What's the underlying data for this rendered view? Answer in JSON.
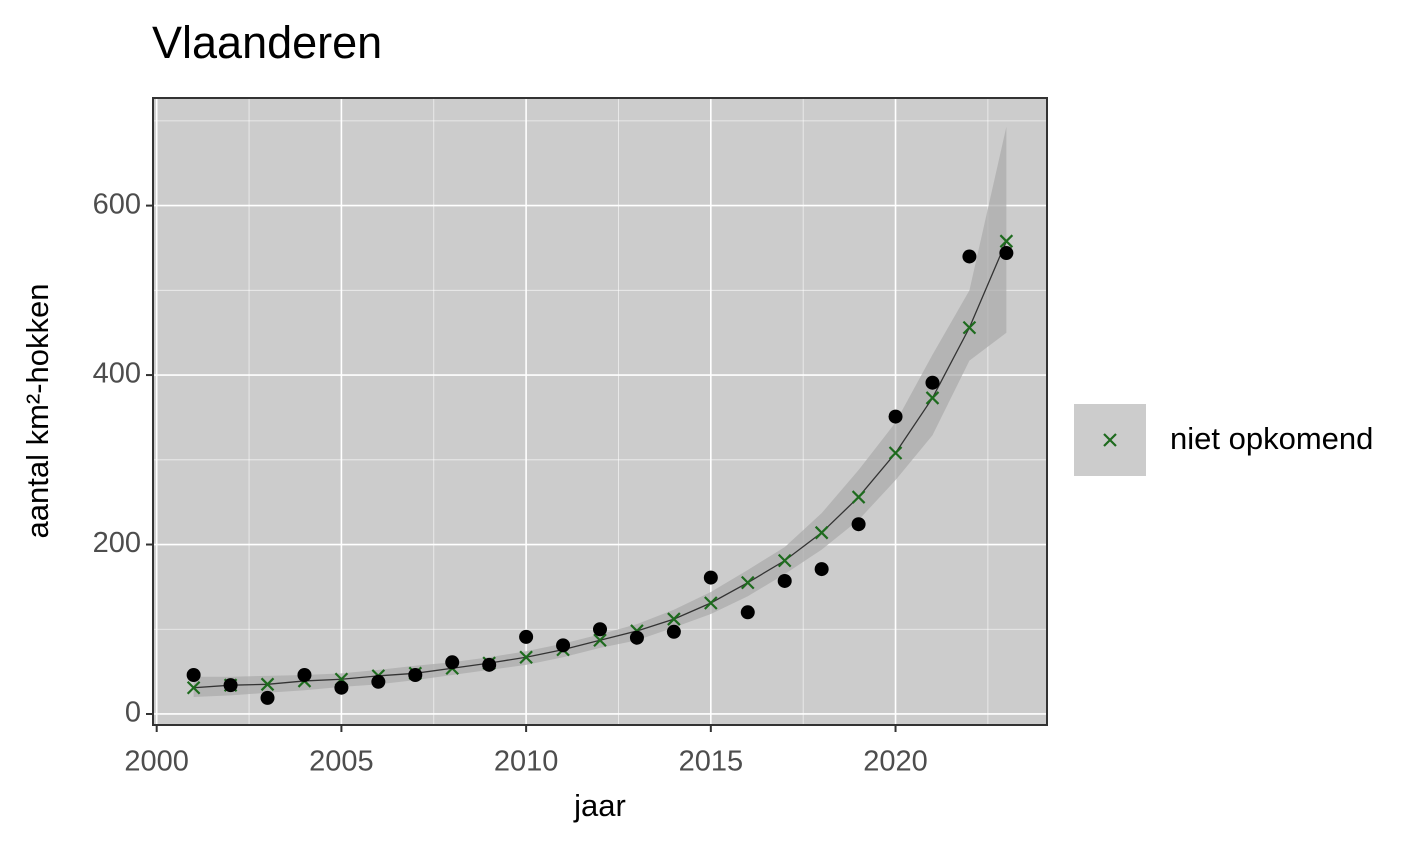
{
  "chart_data": {
    "type": "line",
    "title": "Vlaanderen",
    "x_label": "jaar",
    "y_label": "aantal km²-hokken",
    "x": [
      2001,
      2002,
      2003,
      2004,
      2005,
      2006,
      2007,
      2008,
      2009,
      2010,
      2011,
      2012,
      2013,
      2014,
      2015,
      2016,
      2017,
      2018,
      2019,
      2020,
      2021,
      2022,
      2023
    ],
    "series": [
      {
        "name": "niet opkomend",
        "color": "#1e6b1e",
        "line_color": "#333333",
        "values": [
          31,
          34,
          35,
          39,
          41,
          45,
          48,
          54,
          60,
          67,
          76,
          87,
          98,
          112,
          131,
          155,
          181,
          214,
          256,
          308,
          373,
          456,
          558
        ],
        "lower": [
          20,
          22,
          25,
          28,
          32,
          35,
          40,
          46,
          52,
          58,
          67,
          78,
          87,
          102,
          118,
          139,
          165,
          194,
          229,
          276,
          329,
          417,
          450
        ],
        "upper": [
          44,
          44,
          45,
          46,
          48,
          52,
          57,
          61,
          67,
          74,
          83,
          94,
          106,
          123,
          144,
          170,
          197,
          237,
          288,
          344,
          424,
          500,
          693
        ],
        "ribbon_color": "#aaaaaa"
      },
      {
        "color": "#000000",
        "values": [
          46,
          34,
          19,
          46,
          31,
          38,
          46,
          61,
          58,
          91,
          81,
          100,
          90,
          97,
          161,
          120,
          157,
          171,
          224,
          351,
          391,
          540,
          544
        ]
      }
    ],
    "xlim": [
      1999.9,
      2024.1
    ],
    "ylim": [
      -13,
      727
    ],
    "xticks": [
      2000,
      2005,
      2010,
      2015,
      2020
    ],
    "yticks": [
      0,
      200,
      400,
      600
    ],
    "grid": true,
    "panel_color": "#cccccc",
    "legend": "right"
  }
}
